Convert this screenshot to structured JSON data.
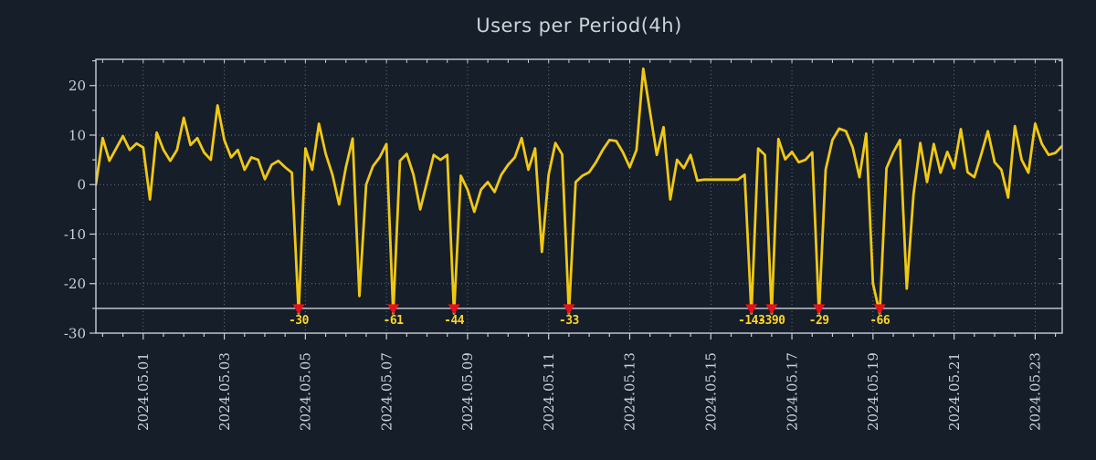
{
  "page": {
    "background": "#151e29"
  },
  "chart_data": {
    "type": "line",
    "title": "Users per Period(4h)",
    "x_start": "2024-04-29 20:00",
    "x_step_hours": 4,
    "xlabel": "",
    "ylabel": "",
    "ylim": [
      -30,
      25.3
    ],
    "grid": true,
    "legend": "none",
    "threshold_line": -25,
    "yticks": [
      20,
      10,
      0,
      -10,
      -20,
      -30
    ],
    "xticks": {
      "labels": [
        "2024.05.01",
        "2024.05.03",
        "2024.05.05",
        "2024.05.07",
        "2024.05.09",
        "2024.05.11",
        "2024.05.13",
        "2024.05.15",
        "2024.05.17",
        "2024.05.19",
        "2024.05.21",
        "2024.05.23"
      ],
      "first_index": 7,
      "index_step": 12
    },
    "series": [
      {
        "name": "users",
        "values": [
          0,
          9.4,
          4.8,
          7.3,
          9.8,
          7,
          8.3,
          7.5,
          -3,
          10.5,
          7,
          4.8,
          7,
          13.5,
          8,
          9.4,
          6.5,
          5,
          16,
          9,
          5.5,
          7,
          3,
          5.5,
          5,
          1.1,
          4,
          4.8,
          3.5,
          2.4,
          -30,
          7.3,
          3,
          12.3,
          6.2,
          2,
          -4,
          3.5,
          9.3,
          -22.5,
          0,
          3.7,
          5.5,
          8.2,
          -61,
          4.8,
          6.2,
          2,
          -5,
          0.5,
          6,
          5,
          6,
          -44,
          1.8,
          -1,
          -5.5,
          -1,
          0.5,
          -1.5,
          2,
          4,
          5.5,
          9.4,
          3,
          7.3,
          -13.6,
          2,
          8.4,
          6.1,
          -33,
          0.5,
          1.8,
          2.5,
          4.5,
          7,
          9,
          8.8,
          6.5,
          3.5,
          7,
          23.4,
          14.7,
          6,
          11.6,
          -3,
          5,
          3.3,
          6,
          0.8,
          1,
          1,
          1,
          1,
          1,
          1,
          2,
          -143,
          7.3,
          6,
          -390,
          9.2,
          5.1,
          6.6,
          4.5,
          5,
          6.5,
          -29,
          3,
          9,
          11.3,
          10.8,
          7.5,
          1.5,
          10.3,
          -20,
          -66,
          3.3,
          6.5,
          9,
          -21,
          -2,
          8.4,
          0.5,
          8.2,
          2.4,
          6.6,
          3.3,
          11.2,
          2.5,
          1.5,
          6,
          10.8,
          4.5,
          3,
          -2.6,
          11.8,
          5,
          2.4,
          12.3,
          8.2,
          6,
          6.4,
          7.8
        ]
      }
    ],
    "annotations": [
      {
        "index": 30,
        "value": -30,
        "label": "-30",
        "time": "2024-05-04 20:00"
      },
      {
        "index": 44,
        "value": -61,
        "label": "-61",
        "time": "2024-05-07 04:00"
      },
      {
        "index": 53,
        "value": -44,
        "label": "-44",
        "time": "2024-05-08 16:00"
      },
      {
        "index": 70,
        "value": -33,
        "label": "-33",
        "time": "2024-05-11 12:00"
      },
      {
        "index": 97,
        "value": -143,
        "label": "-143",
        "time": "2024-05-16 00:00"
      },
      {
        "index": 100,
        "value": -390,
        "label": "-390",
        "time": "2024-05-16 12:00"
      },
      {
        "index": 107,
        "value": -29,
        "label": "-29",
        "time": "2024-05-17 16:00"
      },
      {
        "index": 116,
        "value": -66,
        "label": "-66",
        "time": "2024-05-19 04:00"
      }
    ],
    "colors": {
      "line": "#f0c814",
      "marker": "#e8101f",
      "marker_label": "#ffd42a",
      "grid": "#aab1bb",
      "axis": "#c9ced6",
      "text": "#ccd2d9",
      "threshold": "#dfe3e8",
      "background": "#151e29"
    }
  }
}
